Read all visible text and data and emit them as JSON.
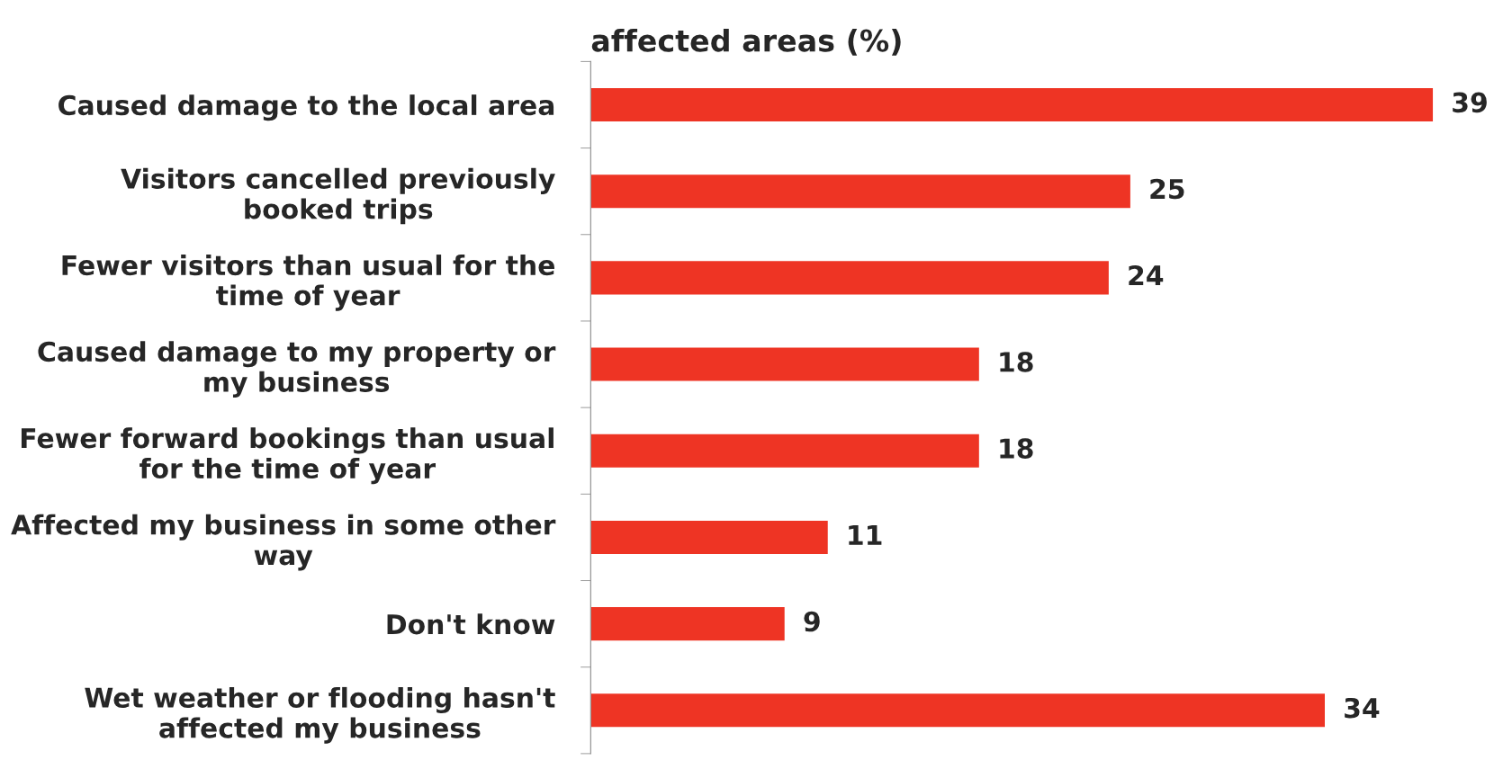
{
  "chart_data": {
    "type": "bar",
    "orientation": "horizontal",
    "title": "affected areas (%)",
    "categories": [
      "Caused damage to the local area",
      "Visitors cancelled previously booked trips",
      "Fewer visitors than usual for the time of year",
      "Caused damage to my property or my business",
      "Fewer forward bookings than usual for the time of year",
      "Affected my business in some other way",
      "Don't know",
      "Wet weather or flooding hasn't affected my business"
    ],
    "values": [
      39,
      25,
      24,
      18,
      18,
      11,
      9,
      34
    ],
    "color": "#ee3424",
    "data_labels": true,
    "grid": false,
    "legend": false,
    "tick_labels": "y"
  }
}
